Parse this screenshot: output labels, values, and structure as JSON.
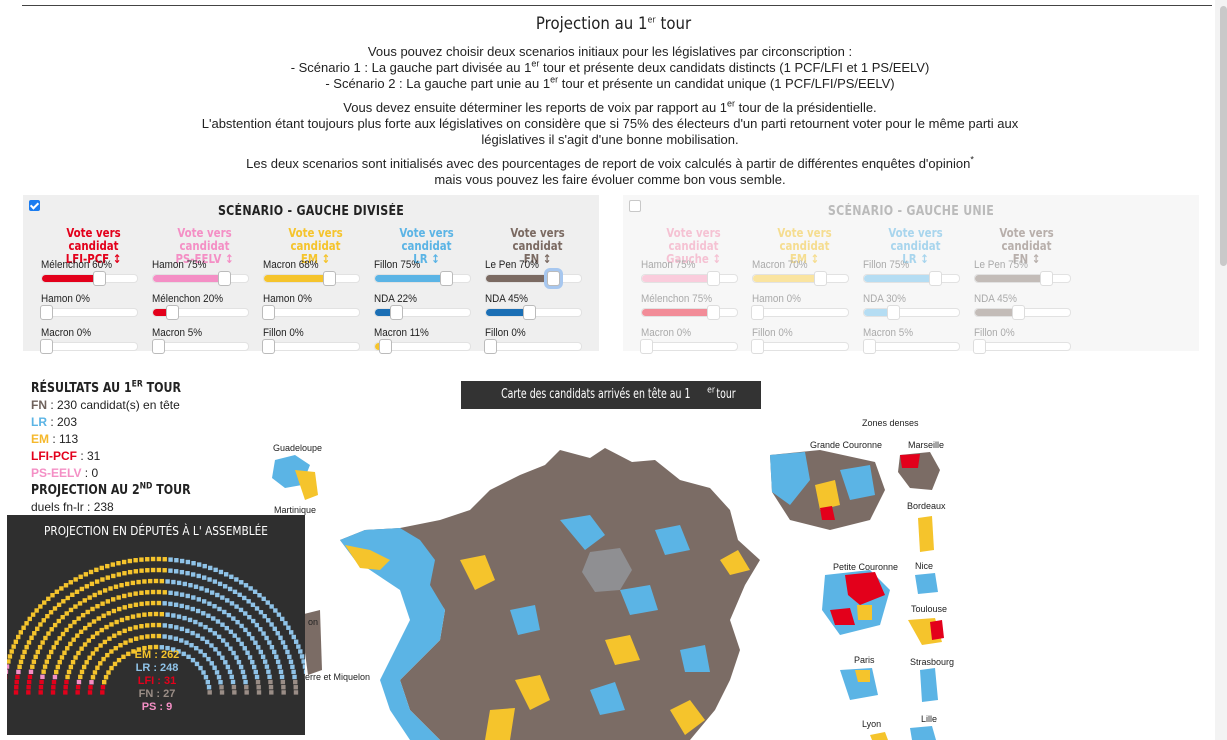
{
  "page": {
    "title_pre": "Projection au 1",
    "title_sup": "er",
    "title_post": " tour"
  },
  "intro": {
    "p1_l1": "Vous pouvez choisir deux scenarios initiaux pour les législatives par circonscription :",
    "p1_l2_pre": "- Scénario 1 : La gauche part divisée au 1",
    "p1_l2_sup": "er",
    "p1_l2_post": " tour et présente deux candidats distincts (1 PCF/LFI et 1 PS/EELV)",
    "p1_l3_pre": "- Scénario 2 : La gauche part unie au 1",
    "p1_l3_sup": "er",
    "p1_l3_post": " tour et présente un candidat unique (1 PCF/LFI/PS/EELV)",
    "p2_l1_pre": "Vous devez ensuite déterminer les reports de voix par rapport au 1",
    "p2_l1_sup": "er",
    "p2_l1_post": " tour de la présidentielle.",
    "p2_l2": "L'abstention étant toujours plus forte aux législatives on considère que si 75% des électeurs d'un parti retournent voter pour le même parti aux législatives il s'agit d'une bonne mobilisation.",
    "p3_pre": "Les deux scenarios sont initialisés avec des pourcentages de report de voix calculés à partir de différentes enquêtes d'opinion",
    "p3_sup": "*",
    "p3_post": " mais vous pouvez les faire évoluer comme bon vous semble."
  },
  "scenario_left": {
    "title": "SCÉNARIO - GAUCHE DIVISÉE",
    "checked": true,
    "columns": [
      {
        "head1": "Vote vers candidat",
        "head2": "LFI-PCF ↕",
        "color": "#e3001b",
        "sliders": [
          {
            "label": "Mélenchon 60%",
            "value": 60
          },
          {
            "label": "Hamon 0%",
            "value": 0
          },
          {
            "label": "Macron 0%",
            "value": 0
          }
        ]
      },
      {
        "head1": "Vote vers candidat",
        "head2": "PS-EELV ↕",
        "color": "#f48fc5",
        "sliders": [
          {
            "label": "Hamon 75%",
            "value": 75
          },
          {
            "label": "Mélenchon 20%",
            "value": 20,
            "color": "#e3001b"
          },
          {
            "label": "Macron 5%",
            "value": 5,
            "color": "#f5c42c"
          }
        ]
      },
      {
        "head1": "Vote vers candidat",
        "head2": "EM ↕",
        "color": "#f5c42c",
        "sliders": [
          {
            "label": "Macron 68%",
            "value": 68
          },
          {
            "label": "Hamon 0%",
            "value": 0
          },
          {
            "label": "Fillon 0%",
            "value": 0
          }
        ]
      },
      {
        "head1": "Vote vers candidat",
        "head2": "LR ↕",
        "color": "#5bb4e5",
        "sliders": [
          {
            "label": "Fillon 75%",
            "value": 75
          },
          {
            "label": "NDA 22%",
            "value": 22,
            "color": "#1b6fb5"
          },
          {
            "label": "Macron 11%",
            "value": 11,
            "color": "#f5c42c"
          }
        ]
      },
      {
        "head1": "Vote vers candidat",
        "head2": "FN ↕",
        "color": "#7b6a62",
        "sliders": [
          {
            "label": "Le Pen 70%",
            "value": 70
          },
          {
            "label": "NDA 45%",
            "value": 45,
            "color": "#1b6fb5"
          },
          {
            "label": "Fillon 0%",
            "value": 0
          }
        ]
      }
    ]
  },
  "scenario_right": {
    "title": "SCÉNARIO - GAUCHE UNIE",
    "checked": false,
    "columns": [
      {
        "head1": "Vote vers candidat",
        "head2": "Gauche ↕",
        "color": "#f48fb1",
        "sliders": [
          {
            "label": "Hamon 75%",
            "value": 75
          },
          {
            "label": "Mélenchon 75%",
            "value": 75,
            "color": "#e3001b"
          },
          {
            "label": "Macron 0%",
            "value": 0
          }
        ]
      },
      {
        "head1": "Vote vers candidat",
        "head2": "EM ↕",
        "color": "#f5c42c",
        "sliders": [
          {
            "label": "Macron 70%",
            "value": 70
          },
          {
            "label": "Hamon 0%",
            "value": 0
          },
          {
            "label": "Fillon 0%",
            "value": 0
          }
        ]
      },
      {
        "head1": "Vote vers candidat",
        "head2": "LR ↕",
        "color": "#5bb4e5",
        "sliders": [
          {
            "label": "Fillon 75%",
            "value": 75
          },
          {
            "label": "NDA 30%",
            "value": 30
          },
          {
            "label": "Macron 5%",
            "value": 5
          }
        ]
      },
      {
        "head1": "Vote vers candidat",
        "head2": "FN ↕",
        "color": "#7b6a62",
        "sliders": [
          {
            "label": "Le Pen 75%",
            "value": 75
          },
          {
            "label": "NDA 45%",
            "value": 45
          },
          {
            "label": "Fillon 0%",
            "value": 0
          }
        ]
      }
    ]
  },
  "results": {
    "heading_pre": "RÉSULTATS AU 1",
    "heading_sup": "ER",
    "heading_post": " TOUR",
    "rows": [
      {
        "party": "FN",
        "text": " : 230 candidat(s) en tête",
        "color": "#6f625c"
      },
      {
        "party": "LR",
        "text": " : 203",
        "color": "#5bb4e5"
      },
      {
        "party": "EM",
        "text": " : 113",
        "color": "#f5b82c"
      },
      {
        "party": "LFI-PCF",
        "text": " : 31",
        "color": "#e3001b"
      },
      {
        "party": "PS-EELV",
        "text": " : 0",
        "color": "#f48fc5"
      }
    ],
    "proj_heading_pre": "PROJECTION AU 2",
    "proj_heading_sup": "ND",
    "proj_heading_post": " TOUR",
    "proj_line": "duels fn-lr : 238"
  },
  "map": {
    "title_pre": "Carte des candidats arrivés en tête au 1",
    "title_sup": "er",
    "title_post": " tour",
    "labels": {
      "zones_denses": "Zones denses",
      "guadeloupe": "Guadeloupe",
      "martinique": "Martinique",
      "grande_couronne": "Grande Couronne",
      "marseille": "Marseille",
      "bordeaux": "Bordeaux",
      "petite_couronne": "Petite Couronne",
      "nice": "Nice",
      "toulouse": "Toulouse",
      "paris": "Paris",
      "strasbourg": "Strasbourg",
      "lyon": "Lyon",
      "lille": "Lille",
      "spm": "erre et Miquelon",
      "cut": "on"
    },
    "colors": {
      "fn": "#7b6c65",
      "lr": "#5bb4e5",
      "em": "#f5c42c",
      "lfi": "#e3001b",
      "idf": "#8f8f92"
    }
  },
  "assembly": {
    "title": "PROJECTION EN DÉPUTÉS À L' ASSEMBLÉE",
    "legend": [
      {
        "label": "EM : 262",
        "color": "#f5c42c"
      },
      {
        "label": "LR : 248",
        "color": "#8fc3e8"
      },
      {
        "label": "LFI : 31",
        "color": "#e3001b"
      },
      {
        "label": "FN : 27",
        "color": "#9a8d86"
      },
      {
        "label": "PS : 9",
        "color": "#f48fc5"
      }
    ]
  }
}
